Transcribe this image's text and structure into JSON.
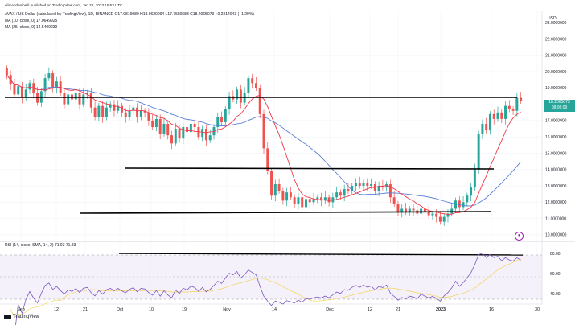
{
  "header": {
    "author_line": "elimandanibelli published on TradingView.com, Jan 24, 2023 15:53 UTC",
    "symbol_line": "AVAX / US Dollar (calculated by TradingView), 1D, BINANCE  O17.9819989  H18.9620094  L17.7580588  C18.2065073  +0.2314043 (+1.29%)",
    "ma10_line": "MA (10, close, 0)  17.0649925",
    "ma25_line": "MA (25, close, 0)  14.5409230",
    "rsi_line": "RSI (14, close, SMA, 14, 2)  71.93  71.83"
  },
  "price_tag": {
    "value": "18.2065073",
    "countdown": "08:06:09"
  },
  "currency_label": "USD",
  "watermark": "TradingView",
  "badge_icon": "tradingview-logo-icon",
  "colors": {
    "up": "#26a69a",
    "down": "#ef5350",
    "ma10": "#f23645",
    "ma25": "#5b7fd9",
    "rsi": "#7e57c2",
    "rsi_ma": "#f4d35e",
    "hline": "#000000"
  },
  "chart_data": [
    {
      "type": "candlestick",
      "timeframe": "1D",
      "x_tick_labels": [
        "Sep",
        "12",
        "21",
        "Oct",
        "10",
        "19",
        "Nov",
        "14",
        "Dec",
        "12",
        "21",
        "2023",
        "16",
        "30"
      ],
      "y_tick_labels": [
        "10.0000000",
        "11.0000000",
        "12.0000000",
        "13.0000000",
        "14.0000000",
        "15.0000000",
        "16.0000000",
        "17.0000000",
        "19.0000000",
        "20.0000000",
        "21.0000000",
        "22.0000000",
        "23.0000000"
      ],
      "ylim": [
        9.7,
        23.7
      ],
      "grid": true,
      "closes": [
        19.8,
        19.2,
        18.6,
        19.1,
        18.4,
        18.9,
        19.3,
        18.7,
        18.1,
        18.8,
        19.6,
        19.9,
        19.0,
        19.4,
        18.7,
        18.0,
        18.6,
        18.3,
        18.7,
        18.0,
        18.6,
        18.7,
        17.8,
        17.2,
        17.9,
        17.2,
        17.8,
        18.0,
        17.6,
        17.9,
        17.5,
        17.2,
        17.6,
        17.8,
        17.2,
        17.6,
        17.5,
        17.0,
        16.6,
        17.1,
        16.2,
        16.8,
        16.1,
        15.6,
        16.5,
        15.9,
        16.6,
        16.3,
        16.8,
        16.6,
        16.0,
        16.5,
        15.8,
        16.1,
        16.6,
        17.2,
        16.9,
        17.7,
        18.5,
        18.3,
        18.9,
        18.1,
        18.7,
        19.6,
        19.3,
        19.0,
        17.4,
        15.3,
        13.9,
        12.4,
        13.1,
        12.7,
        12.1,
        12.6,
        12.3,
        11.9,
        12.3,
        11.7,
        12.2,
        12.0,
        12.2,
        12.3,
        12.1,
        12.3,
        12.0,
        12.3,
        12.6,
        12.4,
        12.8,
        12.7,
        13.0,
        13.2,
        13.0,
        13.2,
        13.0,
        13.1,
        12.7,
        13.0,
        12.9,
        13.1,
        12.3,
        11.9,
        11.4,
        11.6,
        11.4,
        11.6,
        11.5,
        11.3,
        11.6,
        11.4,
        11.2,
        11.3,
        11.1,
        10.8,
        11.1,
        11.3,
        11.6,
        12.1,
        11.7,
        12.0,
        12.4,
        12.9,
        14.0,
        16.2,
        16.8,
        16.4,
        17.4,
        17.1,
        17.5,
        17.1,
        17.9,
        17.7,
        17.6,
        18.4,
        18.21
      ]
    },
    {
      "type": "line",
      "title": "RSI (14, close, SMA, 14, 2)",
      "y_tick_labels": [
        "40.00",
        "60.00",
        "80.00"
      ],
      "ylim": [
        30,
        92
      ],
      "upper_band": 70,
      "middle_band": 50,
      "lower_band": 30,
      "rsi_last": 71.93,
      "rsi_ma_last": 71.83
    }
  ]
}
